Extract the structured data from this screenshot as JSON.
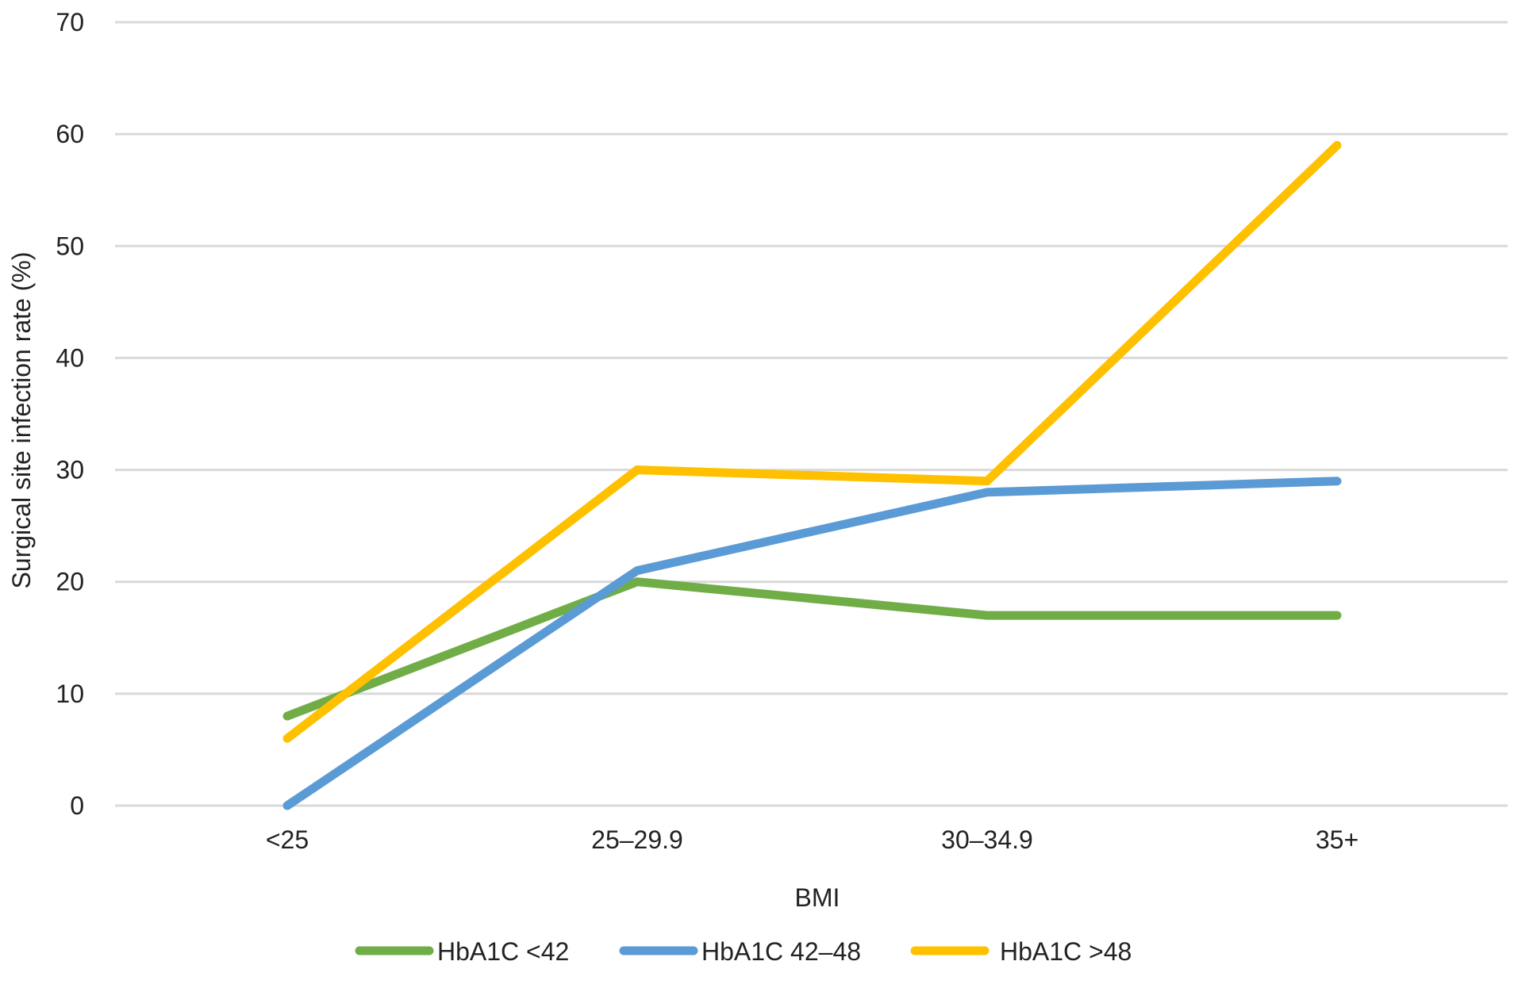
{
  "chart_data": {
    "type": "line",
    "title": "",
    "xlabel": "BMI",
    "ylabel": "Surgical site infection rate (%)",
    "categories": [
      "<25",
      "25–29.9",
      "30–34.9",
      "35+"
    ],
    "ylim": [
      0,
      70
    ],
    "yticks": [
      0,
      10,
      20,
      30,
      40,
      50,
      60,
      70
    ],
    "grid": true,
    "legend_position": "bottom",
    "series": [
      {
        "name": "HbA1C <42",
        "color": "#70ad47",
        "values": [
          8,
          20,
          17,
          17
        ]
      },
      {
        "name": "HbA1C 42–48",
        "color": "#5b9bd5",
        "values": [
          0,
          21,
          28,
          29
        ]
      },
      {
        "name": "HbA1C >48",
        "color": "#ffc000",
        "values": [
          6,
          30,
          29,
          59
        ]
      }
    ]
  }
}
